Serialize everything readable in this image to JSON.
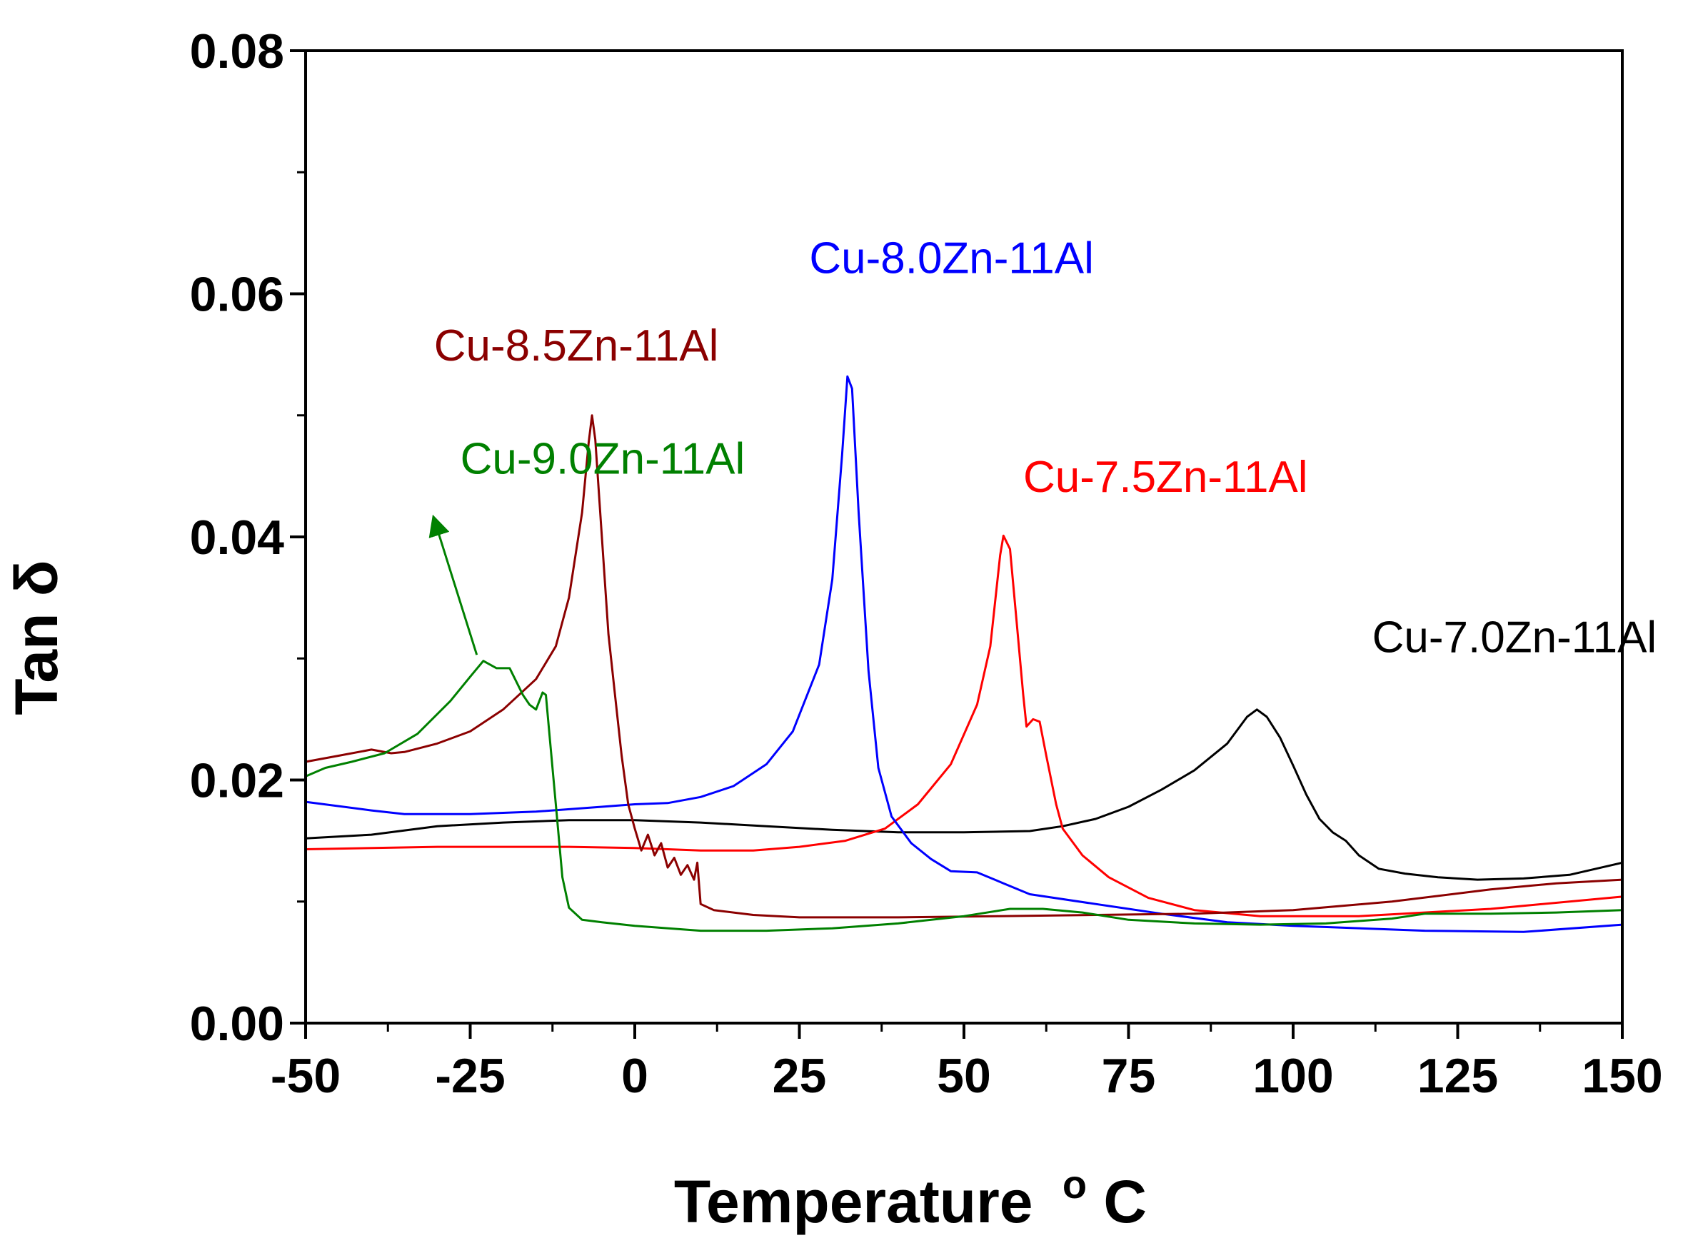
{
  "chart_data": {
    "type": "line",
    "title": "",
    "xlabel": "Temperature",
    "xlabel_sup": "o",
    "xlabel_suffix": "C",
    "ylabel": "Tan δ",
    "xlim": [
      -50,
      150
    ],
    "ylim": [
      0,
      0.08
    ],
    "x_ticks": [
      -50,
      -25,
      0,
      25,
      50,
      75,
      100,
      125,
      150
    ],
    "x_tick_labels": [
      "-50",
      "-25",
      "0",
      "25",
      "50",
      "75",
      "100",
      "125",
      "150"
    ],
    "y_ticks": [
      0,
      0.02,
      0.04,
      0.06,
      0.08
    ],
    "y_tick_labels": [
      "0.00",
      "0.02",
      "0.04",
      "0.06",
      "0.08"
    ],
    "grid": false,
    "series": [
      {
        "name": "Cu-7.0Zn-11Al",
        "color": "#000000",
        "label_pos": [
          112,
          0.0305
        ],
        "points": [
          [
            -50,
            0.0152
          ],
          [
            -40,
            0.0155
          ],
          [
            -30,
            0.0162
          ],
          [
            -20,
            0.0165
          ],
          [
            -10,
            0.0167
          ],
          [
            0,
            0.0167
          ],
          [
            10,
            0.0165
          ],
          [
            20,
            0.0162
          ],
          [
            30,
            0.0159
          ],
          [
            40,
            0.0157
          ],
          [
            50,
            0.0157
          ],
          [
            60,
            0.0158
          ],
          [
            65,
            0.0162
          ],
          [
            70,
            0.0168
          ],
          [
            75,
            0.0178
          ],
          [
            80,
            0.0192
          ],
          [
            85,
            0.0208
          ],
          [
            90,
            0.023
          ],
          [
            93,
            0.0252
          ],
          [
            94.5,
            0.0258
          ],
          [
            96,
            0.0252
          ],
          [
            98,
            0.0235
          ],
          [
            100,
            0.0212
          ],
          [
            102,
            0.0188
          ],
          [
            104,
            0.0168
          ],
          [
            106,
            0.0157
          ],
          [
            108,
            0.015
          ],
          [
            110,
            0.0138
          ],
          [
            113,
            0.0127
          ],
          [
            117,
            0.0123
          ],
          [
            122,
            0.012
          ],
          [
            128,
            0.0118
          ],
          [
            135,
            0.0119
          ],
          [
            142,
            0.0122
          ],
          [
            150,
            0.0132
          ]
        ]
      },
      {
        "name": "Cu-7.5Zn-11Al",
        "color": "#ff0000",
        "label_pos": [
          59,
          0.0437
        ],
        "points": [
          [
            -50,
            0.0143
          ],
          [
            -30,
            0.0145
          ],
          [
            -10,
            0.0145
          ],
          [
            0,
            0.0144
          ],
          [
            10,
            0.0142
          ],
          [
            18,
            0.0142
          ],
          [
            25,
            0.0145
          ],
          [
            32,
            0.015
          ],
          [
            38,
            0.016
          ],
          [
            43,
            0.018
          ],
          [
            48,
            0.0213
          ],
          [
            52,
            0.0262
          ],
          [
            54,
            0.031
          ],
          [
            55.5,
            0.0385
          ],
          [
            56,
            0.0401
          ],
          [
            57,
            0.039
          ],
          [
            58,
            0.033
          ],
          [
            59,
            0.027
          ],
          [
            59.5,
            0.0244
          ],
          [
            60.5,
            0.025
          ],
          [
            61.5,
            0.0248
          ],
          [
            62.5,
            0.022
          ],
          [
            64,
            0.018
          ],
          [
            65,
            0.016
          ],
          [
            68,
            0.0138
          ],
          [
            72,
            0.012
          ],
          [
            78,
            0.0103
          ],
          [
            85,
            0.0093
          ],
          [
            95,
            0.0088
          ],
          [
            110,
            0.0088
          ],
          [
            130,
            0.0094
          ],
          [
            150,
            0.0104
          ]
        ]
      },
      {
        "name": "Cu-8.0Zn-11Al",
        "color": "#0000ff",
        "label_pos": [
          26.5,
          0.0617
        ],
        "points": [
          [
            -50,
            0.0182
          ],
          [
            -40,
            0.0175
          ],
          [
            -35,
            0.0172
          ],
          [
            -25,
            0.0172
          ],
          [
            -15,
            0.0174
          ],
          [
            -5,
            0.0178
          ],
          [
            0,
            0.018
          ],
          [
            5,
            0.0181
          ],
          [
            10,
            0.0186
          ],
          [
            15,
            0.0195
          ],
          [
            20,
            0.0213
          ],
          [
            24,
            0.024
          ],
          [
            28,
            0.0295
          ],
          [
            30,
            0.0365
          ],
          [
            31.5,
            0.0468
          ],
          [
            32.3,
            0.0532
          ],
          [
            33,
            0.0522
          ],
          [
            34,
            0.042
          ],
          [
            35.5,
            0.029
          ],
          [
            37,
            0.021
          ],
          [
            39,
            0.017
          ],
          [
            42,
            0.0148
          ],
          [
            45,
            0.0135
          ],
          [
            48,
            0.0125
          ],
          [
            52,
            0.0124
          ],
          [
            56,
            0.0115
          ],
          [
            60,
            0.0106
          ],
          [
            70,
            0.0098
          ],
          [
            80,
            0.009
          ],
          [
            90,
            0.0083
          ],
          [
            100,
            0.008
          ],
          [
            120,
            0.0076
          ],
          [
            135,
            0.0075
          ],
          [
            150,
            0.0081
          ]
        ]
      },
      {
        "name": "Cu-8.5Zn-11Al",
        "color": "#8b0000",
        "label_pos": [
          -30.5,
          0.0545
        ],
        "points": [
          [
            -50,
            0.0215
          ],
          [
            -45,
            0.022
          ],
          [
            -40,
            0.0225
          ],
          [
            -37,
            0.0222
          ],
          [
            -35,
            0.0223
          ],
          [
            -30,
            0.023
          ],
          [
            -25,
            0.024
          ],
          [
            -20,
            0.0258
          ],
          [
            -15,
            0.0283
          ],
          [
            -12,
            0.031
          ],
          [
            -10,
            0.035
          ],
          [
            -8,
            0.042
          ],
          [
            -7,
            0.0478
          ],
          [
            -6.5,
            0.05
          ],
          [
            -6,
            0.048
          ],
          [
            -5,
            0.04
          ],
          [
            -4,
            0.032
          ],
          [
            -3,
            0.027
          ],
          [
            -2,
            0.022
          ],
          [
            -1,
            0.018
          ],
          [
            0,
            0.016
          ],
          [
            1,
            0.0142
          ],
          [
            2,
            0.0155
          ],
          [
            3,
            0.0138
          ],
          [
            4,
            0.0148
          ],
          [
            5,
            0.0128
          ],
          [
            6,
            0.0136
          ],
          [
            7,
            0.0122
          ],
          [
            8,
            0.013
          ],
          [
            9,
            0.0118
          ],
          [
            9.5,
            0.0132
          ],
          [
            10,
            0.0098
          ],
          [
            12,
            0.0093
          ],
          [
            18,
            0.0089
          ],
          [
            25,
            0.0087
          ],
          [
            40,
            0.0087
          ],
          [
            55,
            0.0088
          ],
          [
            70,
            0.0089
          ],
          [
            85,
            0.009
          ],
          [
            100,
            0.0093
          ],
          [
            115,
            0.01
          ],
          [
            130,
            0.011
          ],
          [
            140,
            0.0115
          ],
          [
            150,
            0.0118
          ]
        ]
      },
      {
        "name": "Cu-9.0Zn-11Al",
        "color": "#008000",
        "label_pos": [
          -26.5,
          0.0452
        ],
        "points": [
          [
            -50,
            0.0203
          ],
          [
            -47,
            0.021
          ],
          [
            -43,
            0.0215
          ],
          [
            -38,
            0.0222
          ],
          [
            -33,
            0.0238
          ],
          [
            -28,
            0.0265
          ],
          [
            -25,
            0.0285
          ],
          [
            -23,
            0.0298
          ],
          [
            -21,
            0.0292
          ],
          [
            -19,
            0.0292
          ],
          [
            -17,
            0.027
          ],
          [
            -16,
            0.0262
          ],
          [
            -15,
            0.0258
          ],
          [
            -14,
            0.0272
          ],
          [
            -13.5,
            0.027
          ],
          [
            -13,
            0.024
          ],
          [
            -12,
            0.018
          ],
          [
            -11,
            0.012
          ],
          [
            -10,
            0.0095
          ],
          [
            -8,
            0.0085
          ],
          [
            -5,
            0.0083
          ],
          [
            0,
            0.008
          ],
          [
            10,
            0.0076
          ],
          [
            20,
            0.0076
          ],
          [
            30,
            0.0078
          ],
          [
            40,
            0.0082
          ],
          [
            50,
            0.0088
          ],
          [
            57,
            0.0094
          ],
          [
            62,
            0.0094
          ],
          [
            68,
            0.0091
          ],
          [
            75,
            0.0085
          ],
          [
            85,
            0.0082
          ],
          [
            95,
            0.0081
          ],
          [
            105,
            0.0082
          ],
          [
            115,
            0.0086
          ],
          [
            120,
            0.009
          ],
          [
            130,
            0.009
          ],
          [
            140,
            0.0091
          ],
          [
            150,
            0.0093
          ]
        ]
      }
    ],
    "annotations": [
      {
        "type": "arrow",
        "series": "Cu-9.0Zn-11Al",
        "from": [
          -24,
          0.0303
        ],
        "to": [
          -30.5,
          0.0415
        ],
        "color": "#008000"
      }
    ]
  }
}
